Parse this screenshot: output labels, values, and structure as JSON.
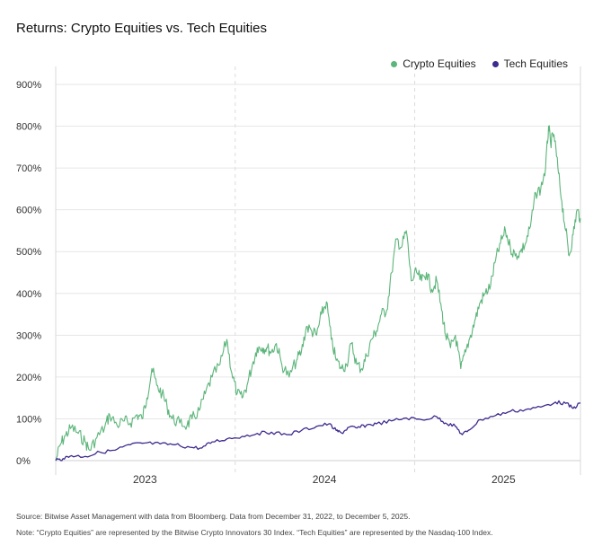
{
  "chart_data": {
    "type": "line",
    "title": "Returns: Crypto Equities vs. Tech Equities",
    "ylabel": "",
    "xlabel": "",
    "x_start": "2022-12-31",
    "x_end": "2025-12-05",
    "ylim": [
      0,
      900
    ],
    "yticks": [
      "0%",
      "100%",
      "200%",
      "300%",
      "400%",
      "500%",
      "600%",
      "700%",
      "800%",
      "900%"
    ],
    "ytick_values": [
      0,
      100,
      200,
      300,
      400,
      500,
      600,
      700,
      800,
      900
    ],
    "xticks": [
      {
        "label": "2023",
        "date": "2023-07-01"
      },
      {
        "label": "2024",
        "date": "2024-07-01"
      },
      {
        "label": "2025",
        "date": "2025-07-01"
      }
    ],
    "year_dividers": [
      "2024-01-01",
      "2025-01-01"
    ],
    "legend_position": "top-right",
    "series": [
      {
        "name": "Crypto Equities",
        "color": "#5cb57a",
        "points": [
          [
            "2022-12-31",
            0
          ],
          [
            "2023-01-10",
            40
          ],
          [
            "2023-01-20",
            60
          ],
          [
            "2023-02-01",
            80
          ],
          [
            "2023-02-15",
            65
          ],
          [
            "2023-03-01",
            45
          ],
          [
            "2023-03-10",
            25
          ],
          [
            "2023-03-25",
            55
          ],
          [
            "2023-04-10",
            80
          ],
          [
            "2023-04-20",
            110
          ],
          [
            "2023-05-05",
            85
          ],
          [
            "2023-05-20",
            95
          ],
          [
            "2023-06-01",
            90
          ],
          [
            "2023-06-15",
            110
          ],
          [
            "2023-06-25",
            100
          ],
          [
            "2023-07-05",
            150
          ],
          [
            "2023-07-15",
            220
          ],
          [
            "2023-07-25",
            180
          ],
          [
            "2023-08-05",
            160
          ],
          [
            "2023-08-15",
            130
          ],
          [
            "2023-08-25",
            100
          ],
          [
            "2023-09-10",
            90
          ],
          [
            "2023-09-25",
            85
          ],
          [
            "2023-10-05",
            100
          ],
          [
            "2023-10-20",
            120
          ],
          [
            "2023-11-01",
            160
          ],
          [
            "2023-11-15",
            200
          ],
          [
            "2023-12-01",
            230
          ],
          [
            "2023-12-15",
            290
          ],
          [
            "2023-12-25",
            210
          ],
          [
            "2024-01-05",
            160
          ],
          [
            "2024-01-15",
            150
          ],
          [
            "2024-01-25",
            180
          ],
          [
            "2024-02-05",
            230
          ],
          [
            "2024-02-15",
            270
          ],
          [
            "2024-02-25",
            270
          ],
          [
            "2024-03-05",
            270
          ],
          [
            "2024-03-15",
            260
          ],
          [
            "2024-03-25",
            280
          ],
          [
            "2024-04-05",
            230
          ],
          [
            "2024-04-20",
            200
          ],
          [
            "2024-05-05",
            240
          ],
          [
            "2024-05-15",
            260
          ],
          [
            "2024-05-25",
            320
          ],
          [
            "2024-06-05",
            310
          ],
          [
            "2024-06-15",
            300
          ],
          [
            "2024-06-25",
            350
          ],
          [
            "2024-07-05",
            380
          ],
          [
            "2024-07-15",
            290
          ],
          [
            "2024-07-25",
            240
          ],
          [
            "2024-08-05",
            220
          ],
          [
            "2024-08-15",
            230
          ],
          [
            "2024-08-25",
            280
          ],
          [
            "2024-09-05",
            230
          ],
          [
            "2024-09-15",
            220
          ],
          [
            "2024-09-25",
            250
          ],
          [
            "2024-10-05",
            290
          ],
          [
            "2024-10-15",
            310
          ],
          [
            "2024-10-25",
            350
          ],
          [
            "2024-11-05",
            360
          ],
          [
            "2024-11-15",
            450
          ],
          [
            "2024-11-25",
            530
          ],
          [
            "2024-12-05",
            510
          ],
          [
            "2024-12-15",
            550
          ],
          [
            "2024-12-25",
            430
          ],
          [
            "2025-01-05",
            450
          ],
          [
            "2025-01-15",
            430
          ],
          [
            "2025-01-25",
            450
          ],
          [
            "2025-02-05",
            410
          ],
          [
            "2025-02-15",
            430
          ],
          [
            "2025-02-25",
            360
          ],
          [
            "2025-03-05",
            300
          ],
          [
            "2025-03-15",
            270
          ],
          [
            "2025-03-25",
            300
          ],
          [
            "2025-04-05",
            220
          ],
          [
            "2025-04-15",
            260
          ],
          [
            "2025-04-25",
            300
          ],
          [
            "2025-05-05",
            340
          ],
          [
            "2025-05-15",
            380
          ],
          [
            "2025-05-25",
            400
          ],
          [
            "2025-06-05",
            420
          ],
          [
            "2025-06-15",
            480
          ],
          [
            "2025-06-25",
            520
          ],
          [
            "2025-07-05",
            550
          ],
          [
            "2025-07-15",
            510
          ],
          [
            "2025-07-25",
            490
          ],
          [
            "2025-08-05",
            500
          ],
          [
            "2025-08-15",
            520
          ],
          [
            "2025-08-25",
            560
          ],
          [
            "2025-09-05",
            640
          ],
          [
            "2025-09-15",
            650
          ],
          [
            "2025-09-25",
            700
          ],
          [
            "2025-10-01",
            800
          ],
          [
            "2025-10-05",
            760
          ],
          [
            "2025-10-12",
            780
          ],
          [
            "2025-10-20",
            700
          ],
          [
            "2025-10-28",
            620
          ],
          [
            "2025-11-05",
            550
          ],
          [
            "2025-11-12",
            490
          ],
          [
            "2025-11-20",
            540
          ],
          [
            "2025-11-28",
            600
          ],
          [
            "2025-12-05",
            580
          ]
        ]
      },
      {
        "name": "Tech Equities",
        "color": "#3f2a8e",
        "points": [
          [
            "2022-12-31",
            0
          ],
          [
            "2023-01-15",
            5
          ],
          [
            "2023-02-01",
            12
          ],
          [
            "2023-03-01",
            10
          ],
          [
            "2023-04-01",
            20
          ],
          [
            "2023-05-01",
            25
          ],
          [
            "2023-06-01",
            38
          ],
          [
            "2023-07-01",
            42
          ],
          [
            "2023-08-01",
            40
          ],
          [
            "2023-09-01",
            38
          ],
          [
            "2023-10-01",
            32
          ],
          [
            "2023-10-25",
            30
          ],
          [
            "2023-11-15",
            45
          ],
          [
            "2023-12-15",
            52
          ],
          [
            "2024-01-15",
            58
          ],
          [
            "2024-02-15",
            65
          ],
          [
            "2024-03-15",
            68
          ],
          [
            "2024-04-15",
            62
          ],
          [
            "2024-05-15",
            72
          ],
          [
            "2024-06-15",
            82
          ],
          [
            "2024-07-10",
            88
          ],
          [
            "2024-07-25",
            72
          ],
          [
            "2024-08-05",
            66
          ],
          [
            "2024-08-20",
            80
          ],
          [
            "2024-09-05",
            78
          ],
          [
            "2024-09-25",
            85
          ],
          [
            "2024-10-15",
            88
          ],
          [
            "2024-11-15",
            95
          ],
          [
            "2024-12-15",
            102
          ],
          [
            "2025-01-15",
            98
          ],
          [
            "2025-02-15",
            105
          ],
          [
            "2025-03-05",
            90
          ],
          [
            "2025-03-25",
            82
          ],
          [
            "2025-04-08",
            62
          ],
          [
            "2025-04-20",
            72
          ],
          [
            "2025-05-15",
            98
          ],
          [
            "2025-06-15",
            108
          ],
          [
            "2025-07-15",
            118
          ],
          [
            "2025-08-15",
            122
          ],
          [
            "2025-09-15",
            128
          ],
          [
            "2025-10-15",
            140
          ],
          [
            "2025-11-05",
            137
          ],
          [
            "2025-11-20",
            125
          ],
          [
            "2025-12-05",
            138
          ]
        ]
      }
    ]
  },
  "footer": {
    "source": "Source: Bitwise Asset Management with data from Bloomberg. Data from December 31, 2022, to December 5, 2025.",
    "note": "Note: “Crypto Equities” are represented by the Bitwise Crypto Innovators 30 Index. “Tech Equities” are represented by the Nasdaq-100 Index."
  }
}
